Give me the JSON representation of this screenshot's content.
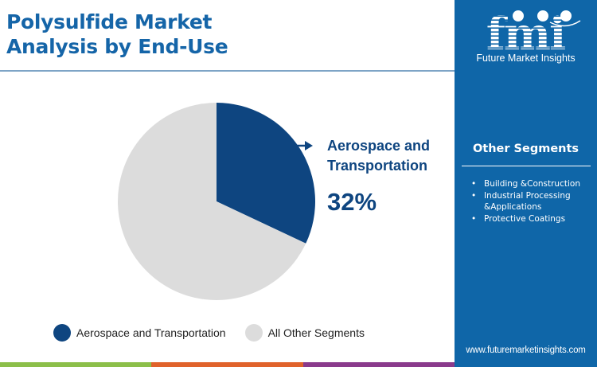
{
  "header": {
    "title_line1": "Polysulfide Market",
    "title_line2": "Analysis by End-Use"
  },
  "brand": {
    "logo_text": "fmi",
    "name": "Future Market Insights",
    "website": "www.futuremarketinsights.com",
    "sidebar_color": "#0f66a8"
  },
  "sidebar": {
    "title": "Other Segments",
    "items": [
      {
        "label": "Building &Construction"
      },
      {
        "label": "Industrial Processing &Applications"
      },
      {
        "label": "Protective Coatings"
      }
    ]
  },
  "callout": {
    "label": "Aerospace and Transportation",
    "value": "32%"
  },
  "legend": [
    {
      "label": "Aerospace and Transportation",
      "color": "#0e4580"
    },
    {
      "label": "All Other Segments",
      "color": "#dcdcdc"
    }
  ],
  "bottom_bar_colors": [
    "#8cbf4a",
    "#e0622b",
    "#8a3a8c"
  ],
  "chart_data": {
    "type": "pie",
    "title": "Polysulfide Market Analysis by End-Use",
    "categories": [
      "Aerospace and Transportation",
      "All Other Segments"
    ],
    "values": [
      32,
      68
    ],
    "colors": [
      "#0e4580",
      "#dcdcdc"
    ],
    "unit": "%",
    "start_angle_deg": 0,
    "direction": "clockwise",
    "annotations": [
      {
        "target": "Aerospace and Transportation",
        "text": "32%"
      }
    ],
    "legend_position": "bottom"
  }
}
